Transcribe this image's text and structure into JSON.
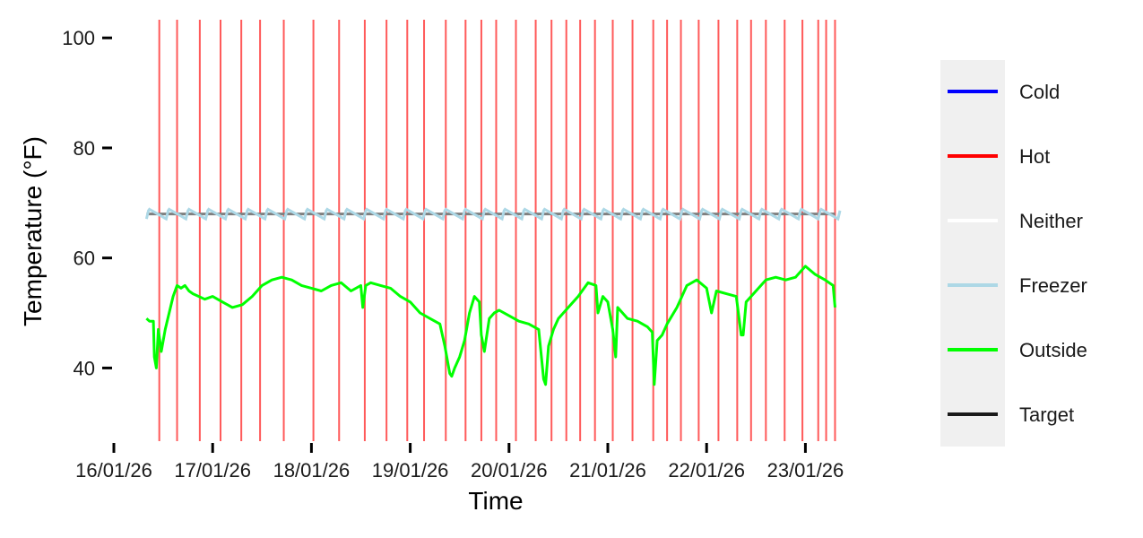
{
  "chart_data": {
    "type": "line",
    "title": "",
    "xlabel": "Time",
    "ylabel": "Temperature (°F)",
    "x_ticks": [
      "16/01/26",
      "17/01/26",
      "18/01/26",
      "19/01/26",
      "20/01/26",
      "21/01/26",
      "22/01/26",
      "23/01/26"
    ],
    "x_range_days": [
      0,
      7.45
    ],
    "y_ticks": [
      40,
      60,
      80,
      100
    ],
    "ylim": [
      26.7,
      103.3
    ],
    "grid": false,
    "legend_position": "right",
    "legend": [
      {
        "name": "Cold",
        "color": "#0000ff"
      },
      {
        "name": "Hot",
        "color": "#ff0000"
      },
      {
        "name": "Neither",
        "color": "#ffffff"
      },
      {
        "name": "Freezer",
        "color": "#add8e6"
      },
      {
        "name": "Outside",
        "color": "#00ff00"
      },
      {
        "name": "Target",
        "color": "#1a1a1a"
      }
    ],
    "target": {
      "name": "Target",
      "value": 68,
      "x_range": [
        0.33,
        7.3
      ]
    },
    "hot_events_days": [
      0.46,
      0.64,
      0.87,
      1.08,
      1.29,
      1.48,
      1.72,
      2.02,
      2.28,
      2.54,
      2.76,
      2.97,
      3.14,
      3.36,
      3.56,
      3.72,
      3.87,
      4.07,
      4.27,
      4.43,
      4.58,
      4.72,
      4.87,
      5.05,
      5.25,
      5.46,
      5.6,
      5.74,
      5.92,
      6.12,
      6.31,
      6.45,
      6.6,
      6.79,
      6.97,
      7.13,
      7.21,
      7.3
    ],
    "freezer": {
      "name": "Freezer",
      "value": 68,
      "x_range": [
        0.33,
        7.35
      ],
      "cycle_days": 0.2,
      "amplitude": 0.9
    },
    "outside": {
      "name": "Outside",
      "x": [
        0.33,
        0.36,
        0.4,
        0.41,
        0.43,
        0.45,
        0.48,
        0.5,
        0.52,
        0.56,
        0.6,
        0.64,
        0.68,
        0.72,
        0.76,
        0.8,
        0.86,
        0.92,
        1.0,
        1.1,
        1.2,
        1.3,
        1.4,
        1.5,
        1.6,
        1.7,
        1.8,
        1.9,
        2.0,
        2.1,
        2.2,
        2.3,
        2.4,
        2.5,
        2.52,
        2.55,
        2.6,
        2.7,
        2.8,
        2.9,
        3.0,
        3.1,
        3.2,
        3.3,
        3.35,
        3.4,
        3.42,
        3.45,
        3.5,
        3.55,
        3.6,
        3.65,
        3.7,
        3.72,
        3.75,
        3.8,
        3.85,
        3.9,
        4.0,
        4.1,
        4.2,
        4.3,
        4.35,
        4.37,
        4.4,
        4.45,
        4.5,
        4.6,
        4.7,
        4.8,
        4.88,
        4.9,
        4.95,
        5.0,
        5.05,
        5.08,
        5.1,
        5.2,
        5.3,
        5.4,
        5.45,
        5.47,
        5.5,
        5.55,
        5.6,
        5.7,
        5.8,
        5.9,
        6.0,
        6.05,
        6.1,
        6.2,
        6.3,
        6.35,
        6.37,
        6.4,
        6.5,
        6.6,
        6.7,
        6.8,
        6.9,
        7.0,
        7.1,
        7.2,
        7.28,
        7.3
      ],
      "values": [
        49,
        48.5,
        48.5,
        42,
        40,
        47,
        43,
        45,
        47,
        50,
        53,
        55,
        54.5,
        55,
        54,
        53.5,
        53,
        52.5,
        53,
        52,
        51,
        51.5,
        53,
        55,
        56,
        56.5,
        56,
        55,
        54.5,
        54,
        55,
        55.5,
        54,
        55,
        51,
        55,
        55.5,
        55,
        54.5,
        53,
        52,
        50,
        49,
        48,
        44,
        39,
        38.5,
        40,
        42,
        45,
        50,
        53,
        52,
        46,
        43,
        49,
        50,
        50.5,
        49.5,
        48.5,
        48,
        47,
        38,
        37,
        44,
        47,
        49,
        51,
        53,
        55.5,
        55,
        50,
        53,
        52,
        47,
        42,
        51,
        49,
        48.5,
        47.5,
        46.5,
        37,
        45,
        46,
        48,
        51,
        55,
        56,
        54.5,
        50,
        54,
        53.5,
        53,
        46,
        46,
        52,
        54,
        56,
        56.5,
        56,
        56.5,
        58.5,
        57,
        56,
        55,
        51
      ]
    }
  }
}
